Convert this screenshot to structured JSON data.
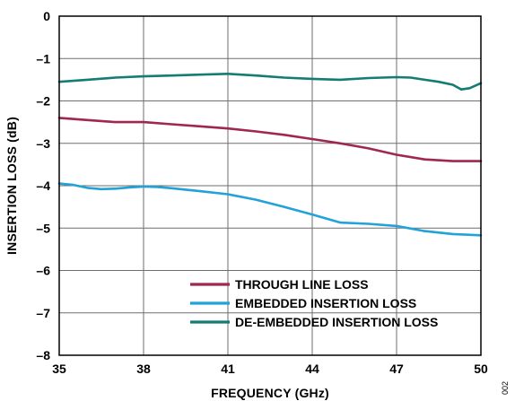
{
  "chart_data": {
    "type": "line",
    "xlabel": "FREQUENCY (GHz)",
    "ylabel": "INSERTION LOSS (dB)",
    "xlim": [
      35,
      50
    ],
    "ylim": [
      -8,
      0
    ],
    "x_ticks": [
      35,
      38,
      41,
      44,
      47,
      50
    ],
    "y_ticks": [
      0,
      -1,
      -2,
      -3,
      -4,
      -5,
      -6,
      -7,
      -8
    ],
    "x_tick_labels": [
      "35",
      "38",
      "41",
      "44",
      "47",
      "50"
    ],
    "y_tick_labels": [
      "0",
      "–1",
      "–2",
      "–3",
      "–4",
      "–5",
      "–6",
      "–7",
      "–8"
    ],
    "grid": true,
    "legend_position": "bottom-right",
    "figure_id": "002",
    "series": [
      {
        "name": "THROUGH LINE LOSS",
        "color": "#a0274d",
        "x": [
          35,
          36,
          37,
          38,
          39,
          40,
          41,
          42,
          43,
          44,
          45,
          46,
          47,
          48,
          49,
          50
        ],
        "y": [
          -2.4,
          -2.45,
          -2.5,
          -2.5,
          -2.55,
          -2.6,
          -2.65,
          -2.72,
          -2.8,
          -2.9,
          -3.0,
          -3.12,
          -3.27,
          -3.38,
          -3.42,
          -3.42
        ]
      },
      {
        "name": "EMBEDDED INSERTION LOSS",
        "color": "#22a2d8",
        "x": [
          35,
          35.5,
          36,
          36.5,
          37,
          37.5,
          38,
          38.5,
          39,
          40,
          41,
          42,
          43,
          44,
          45,
          46,
          47,
          48,
          49,
          50
        ],
        "y": [
          -3.95,
          -3.98,
          -4.05,
          -4.08,
          -4.07,
          -4.04,
          -4.02,
          -4.03,
          -4.06,
          -4.13,
          -4.2,
          -4.33,
          -4.5,
          -4.68,
          -4.87,
          -4.9,
          -4.95,
          -5.07,
          -5.14,
          -5.17
        ]
      },
      {
        "name": "DE-EMBEDDED INSERTION LOSS",
        "color": "#127c75",
        "x": [
          35,
          36,
          37,
          38,
          39,
          40,
          41,
          42,
          43,
          44,
          45,
          46,
          47,
          47.5,
          48,
          48.5,
          49,
          49.3,
          49.6,
          50
        ],
        "y": [
          -1.55,
          -1.5,
          -1.45,
          -1.42,
          -1.4,
          -1.38,
          -1.36,
          -1.4,
          -1.45,
          -1.48,
          -1.5,
          -1.46,
          -1.44,
          -1.45,
          -1.5,
          -1.55,
          -1.62,
          -1.73,
          -1.7,
          -1.58
        ]
      }
    ]
  }
}
